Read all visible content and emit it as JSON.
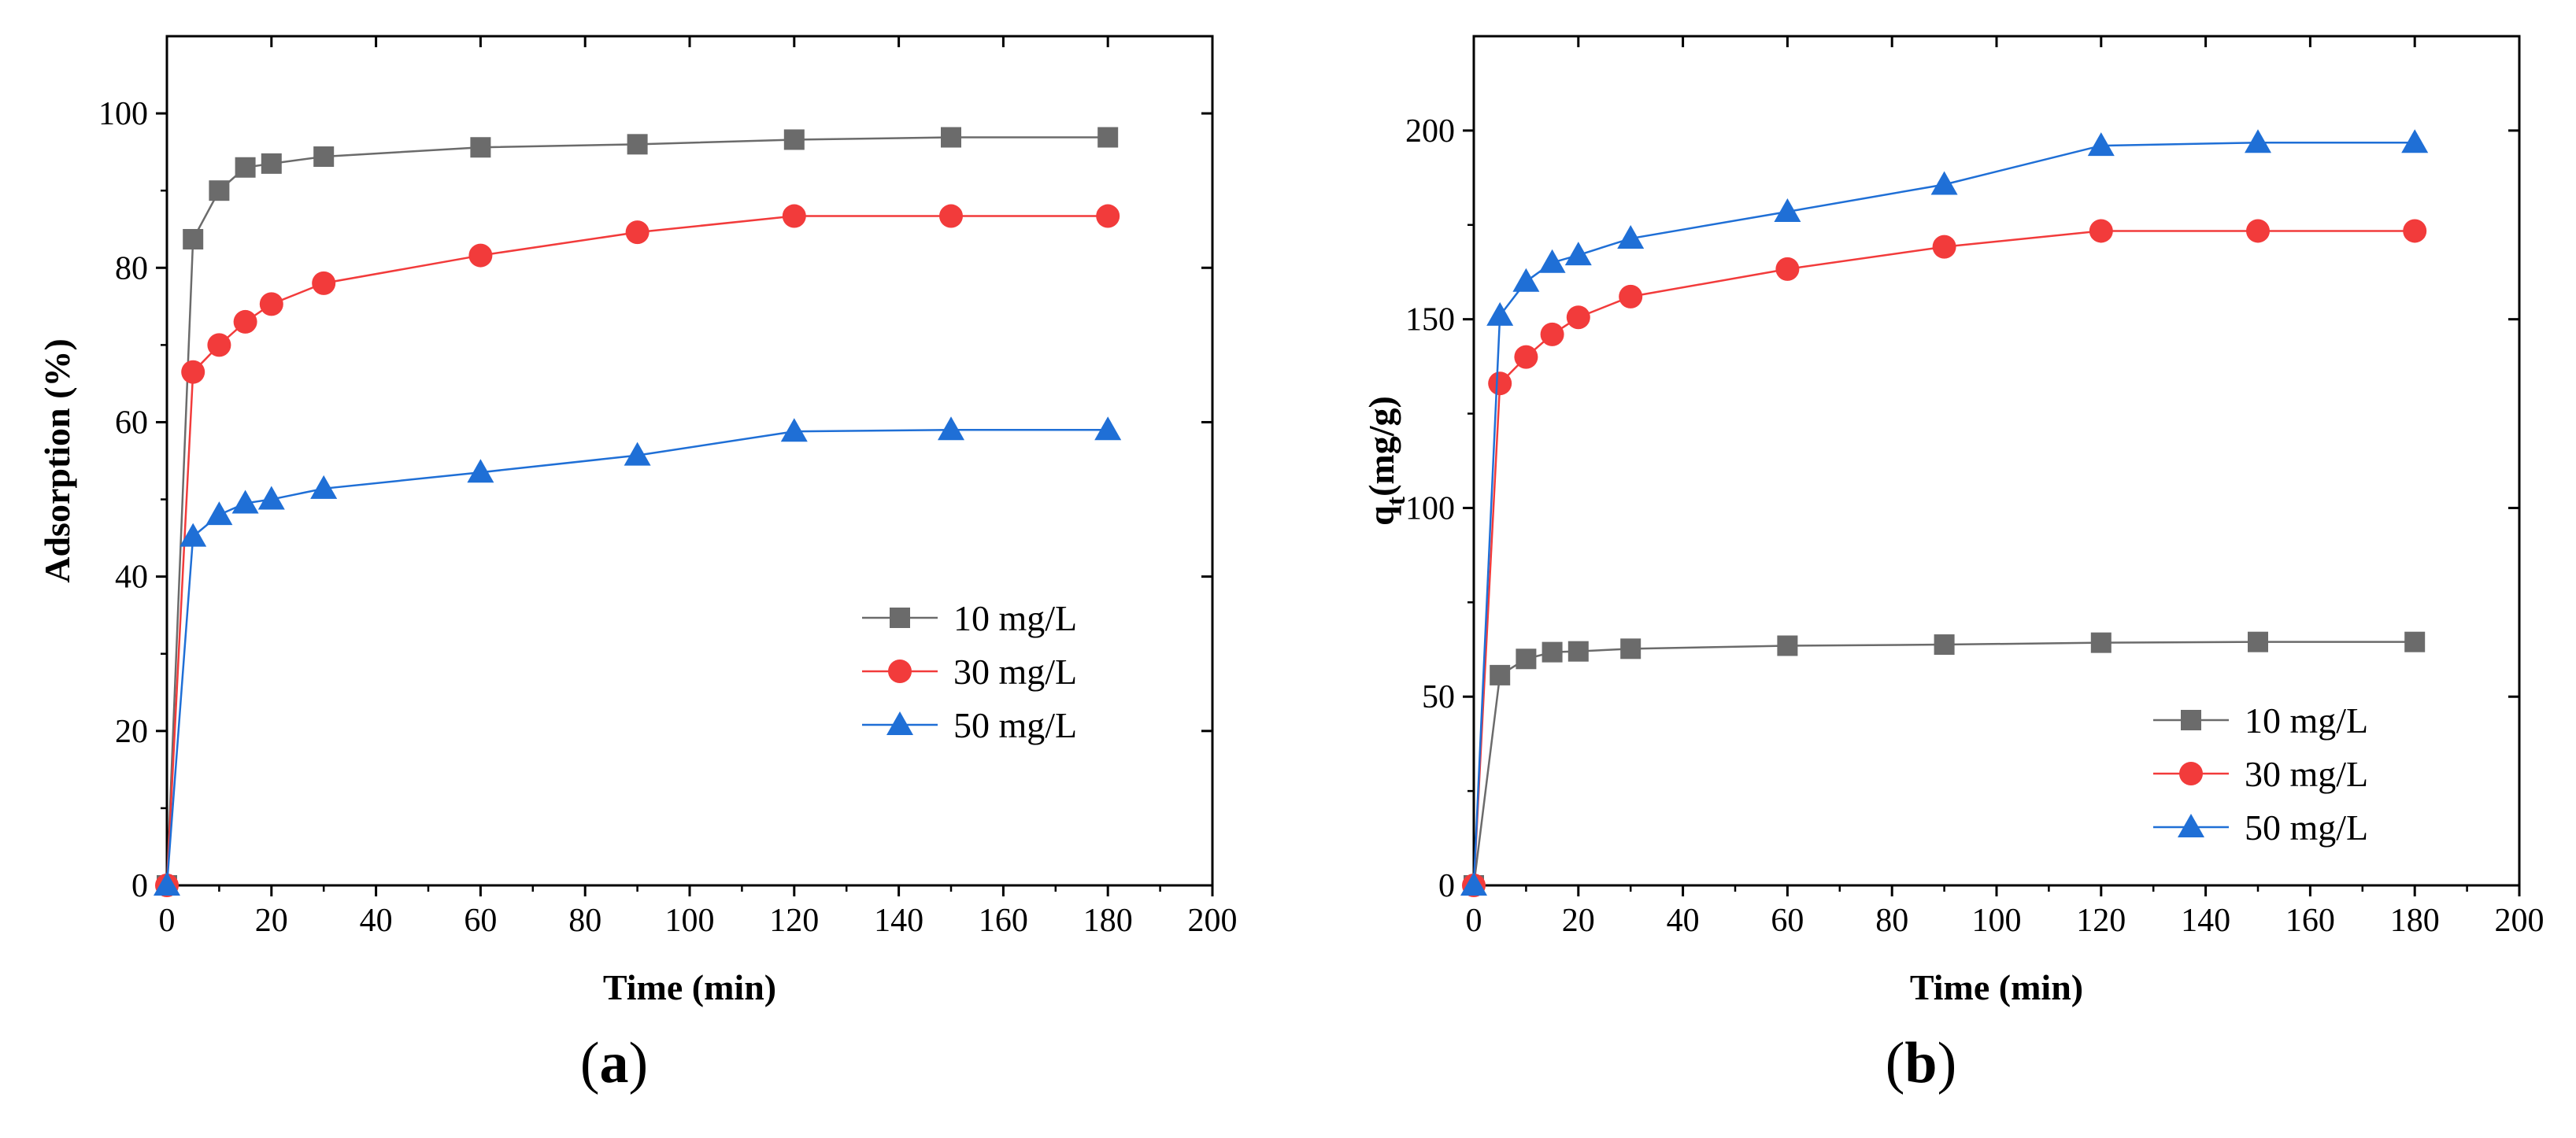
{
  "chart_data": [
    {
      "type": "line",
      "panel_label": "(a)",
      "panel_letter": "a",
      "xlabel": "Time (min)",
      "ylabel": "Adsorption (%)",
      "xlim": [
        0,
        200
      ],
      "ylim": [
        0,
        110
      ],
      "xticks": [
        0,
        20,
        40,
        60,
        80,
        100,
        120,
        140,
        160,
        180,
        200
      ],
      "yticks": [
        0,
        20,
        40,
        60,
        80,
        100
      ],
      "legend_position": "center-right",
      "x": [
        0,
        5,
        10,
        15,
        20,
        30,
        60,
        90,
        120,
        150,
        180
      ],
      "series": [
        {
          "name": "10 mg/L",
          "marker": "square",
          "color": "#6b6b6b",
          "values": [
            0,
            83.7,
            90,
            93,
            93.5,
            94.4,
            95.6,
            96,
            96.6,
            96.9,
            96.9
          ]
        },
        {
          "name": "30 mg/L",
          "marker": "circle",
          "color": "#f23b3b",
          "values": [
            0,
            66.5,
            70,
            73,
            75.3,
            78,
            81.6,
            84.6,
            86.7,
            86.7,
            86.7
          ]
        },
        {
          "name": "50 mg/L",
          "marker": "triangle",
          "color": "#1f6fd6",
          "values": [
            0,
            45.2,
            48,
            49.5,
            50,
            51.4,
            53.5,
            55.7,
            58.8,
            59,
            59
          ]
        }
      ]
    },
    {
      "type": "line",
      "panel_label": "(b)",
      "panel_letter": "b",
      "xlabel": "Time (min)",
      "ylabel": "qt(mg/g)",
      "ylabel_main": "q",
      "ylabel_sub": "t",
      "ylabel_rest": "(mg/g)",
      "xlim": [
        0,
        200
      ],
      "ylim": [
        0,
        225
      ],
      "xticks": [
        0,
        20,
        40,
        60,
        80,
        100,
        120,
        140,
        160,
        180,
        200
      ],
      "yticks": [
        0,
        50,
        100,
        150,
        200
      ],
      "legend_position": "bottom-right",
      "x": [
        0,
        5,
        10,
        15,
        20,
        30,
        60,
        90,
        120,
        150,
        180
      ],
      "series": [
        {
          "name": "10 mg/L",
          "marker": "square",
          "color": "#6b6b6b",
          "values": [
            0,
            55.7,
            60,
            61.8,
            62,
            62.7,
            63.5,
            63.8,
            64.3,
            64.5,
            64.5
          ]
        },
        {
          "name": "30 mg/L",
          "marker": "circle",
          "color": "#f23b3b",
          "values": [
            0,
            133,
            140,
            146,
            150.5,
            156,
            163.3,
            169.2,
            173.4,
            173.4,
            173.4
          ]
        },
        {
          "name": "50 mg/L",
          "marker": "triangle",
          "color": "#1f6fd6",
          "values": [
            0,
            151,
            160,
            165,
            167,
            171.4,
            178.5,
            185.7,
            196,
            196.8,
            196.8
          ]
        }
      ]
    }
  ]
}
